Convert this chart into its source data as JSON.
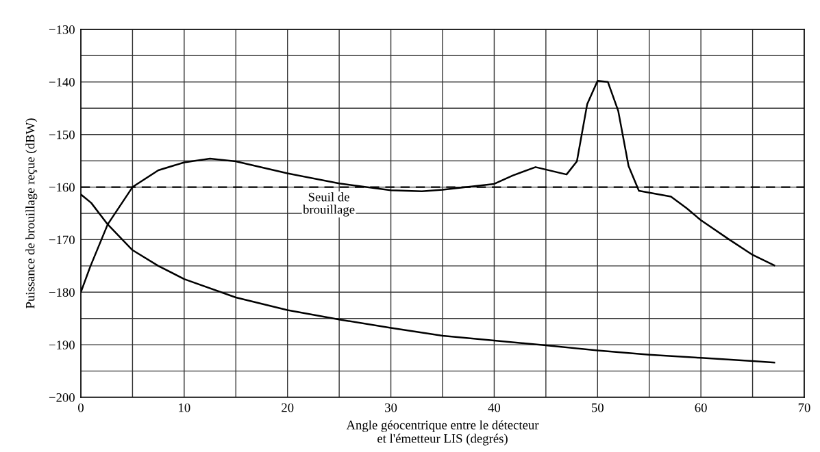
{
  "chart_data": {
    "type": "line",
    "xlabel": "Angle géocentrique entre le détecteur\net l'émetteur LIS (degrés)",
    "ylabel": "Puissance de brouillage reçue (dBW)",
    "xlim": [
      0,
      70
    ],
    "ylim": [
      -200,
      -130
    ],
    "xticks": [
      0,
      {
        "value": 5,
        "label": null
      },
      10,
      {
        "value": 15,
        "label": null
      },
      20,
      {
        "value": 25,
        "label": null
      },
      30,
      {
        "value": 35,
        "label": null
      },
      40,
      {
        "value": 45,
        "label": null
      },
      50,
      {
        "value": 55,
        "label": null
      },
      60,
      {
        "value": 65,
        "label": null
      },
      70
    ],
    "yticks": [
      {
        "value": -200,
        "label": "−200"
      },
      {
        "value": -195,
        "label": null
      },
      {
        "value": -190,
        "label": "−190"
      },
      {
        "value": -185,
        "label": null
      },
      {
        "value": -180,
        "label": "−180"
      },
      {
        "value": -175,
        "label": null
      },
      {
        "value": -170,
        "label": "−170"
      },
      {
        "value": -165,
        "label": null
      },
      {
        "value": -160,
        "label": "−160"
      },
      {
        "value": -155,
        "label": null
      },
      {
        "value": -150,
        "label": "−150"
      },
      {
        "value": -145,
        "label": null
      },
      {
        "value": -140,
        "label": "−140"
      },
      {
        "value": -135,
        "label": null
      },
      {
        "value": -130,
        "label": "−130"
      }
    ],
    "grid": true,
    "legend": false,
    "marker": "none",
    "line_style": "solid",
    "ref_lines": [
      {
        "axis": "y",
        "value": -160,
        "label": "Seuil de\nbrouillage",
        "line_style": "dashed",
        "color": "#000000"
      }
    ],
    "series": [
      {
        "color": "#000000",
        "x": [
          0,
          0.9,
          2.6,
          5,
          7.5,
          10,
          12.5,
          15,
          20,
          25,
          30,
          33,
          35,
          40,
          41.8,
          44,
          47,
          48,
          49,
          50,
          51,
          52,
          53,
          54,
          57.1,
          58.6,
          60,
          62.6,
          65,
          67.1
        ],
        "values": [
          -180,
          -175.2,
          -167.1,
          -160,
          -156.8,
          -155.3,
          -154.6,
          -155.1,
          -157.4,
          -159.3,
          -160.6,
          -160.8,
          -160.5,
          -159.4,
          -157.8,
          -156.2,
          -157.6,
          -155.1,
          -144.2,
          -139.8,
          -140,
          -145.5,
          -156,
          -160.7,
          -161.8,
          -164,
          -166.3,
          -169.8,
          -172.9,
          -174.9
        ]
      },
      {
        "color": "#000000",
        "x": [
          0,
          1,
          2.6,
          5,
          7.5,
          10,
          15,
          20,
          25,
          30,
          35,
          40,
          45,
          50,
          55,
          60,
          65,
          67.1
        ],
        "values": [
          -161.4,
          -163,
          -167.1,
          -172,
          -175,
          -177.5,
          -181,
          -183.4,
          -185.2,
          -186.8,
          -188.3,
          -189.2,
          -190.1,
          -191.1,
          -191.9,
          -192.5,
          -193.1,
          -193.4
        ]
      }
    ]
  }
}
